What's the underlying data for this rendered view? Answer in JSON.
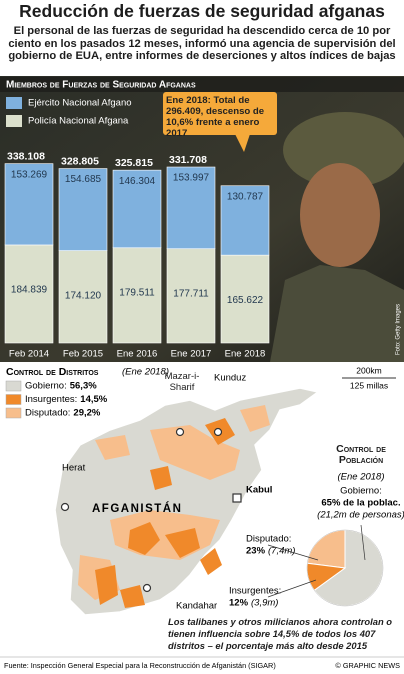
{
  "header": {
    "title": "Reducción de fuerzas de seguridad afganas",
    "subtitle": "El personal de las fuerzas de seguridad ha descendido cerca de 10 por ciento en los pasados 12 meses, informó una agencia de supervisión del gobierno de EUA, entre informes de deserciones y altos índices de bajas"
  },
  "chart_data": [
    {
      "type": "stacked_bar",
      "title": "Miembros de Fuerzas de Seguridad Afganas",
      "categories": [
        "Feb 2014",
        "Feb 2015",
        "Ene 2016",
        "Ene 2017",
        "Ene 2018"
      ],
      "series": [
        {
          "name": "Ejército Nacional Afgano",
          "color": "#7fb1de",
          "values": [
            153269,
            154685,
            146304,
            153997,
            130787
          ],
          "value_labels": [
            "153.269",
            "154.685",
            "146.304",
            "153.997",
            "130.787"
          ]
        },
        {
          "name": "Policía Nacional Afgana",
          "color": "#dbe0cc",
          "values": [
            184839,
            174120,
            179511,
            177711,
            165622
          ],
          "value_labels": [
            "184.839",
            "174.120",
            "179.511",
            "177.711",
            "165.622"
          ]
        }
      ],
      "totals": {
        "values": [
          338108,
          328805,
          325815,
          331708,
          null
        ],
        "value_labels": [
          "338.108",
          "328.805",
          "325.815",
          "331.708",
          null
        ]
      },
      "ylim": [
        0,
        360000
      ],
      "annotation": "Ene 2018: Total de 296.409, descenso de 10,6% frente a enero 2017",
      "photo_credit": "Foto: Getty Images"
    },
    {
      "type": "key",
      "title": "Control de Distritos",
      "subtitle": "(Ene 2018)",
      "categories": [
        "Gobierno:",
        "Insurgentes:",
        "Disputado:"
      ],
      "values": [
        56.3,
        14.5,
        29.2
      ],
      "value_labels": [
        "56,3%",
        "14,5%",
        "29,2%"
      ],
      "colors": [
        "#d9d9d2",
        "#f0892a",
        "#f7be8c"
      ]
    },
    {
      "type": "pie",
      "title": "Control de Población",
      "subtitle": "(Ene 2018)",
      "categories": [
        "Gobierno:",
        "Disputado:",
        "Insurgentes:"
      ],
      "values": [
        65,
        23,
        12
      ],
      "value_labels": [
        "65% de la poblac.",
        "23%",
        "12%"
      ],
      "notes": [
        "(21,2m de personas)",
        "(7,4m)",
        "(3,9m)"
      ],
      "colors": [
        "#d9d9d2",
        "#f7be8c",
        "#f0892a"
      ]
    }
  ],
  "map": {
    "labels": {
      "mazar": "Mazar-i-Sharif",
      "kunduz": "Kunduz",
      "herat": "Herat",
      "kabul": "Kabul",
      "country": "Afganistán",
      "kandahar": "Kandahar"
    },
    "scale": [
      "200km",
      "125 millas"
    ],
    "note": "Los talibanes y otros milicianos ahora controlan o tienen influencia sobre 14,5% de todos los 407 distritos – el porcentaje más alto desde 2015"
  },
  "footer": {
    "source": "Fuente: Inspección General Especial para la Reconstrucción de Afganistán (SIGAR)",
    "credit": "© GRAPHIC NEWS"
  }
}
